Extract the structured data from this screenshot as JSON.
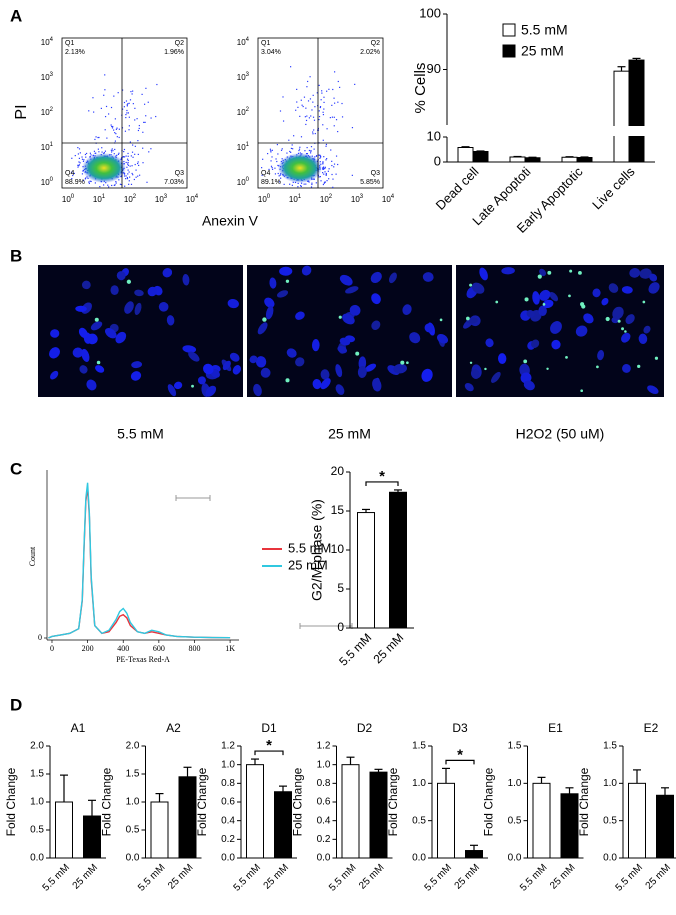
{
  "panel_labels": [
    "A",
    "B",
    "C",
    "D"
  ],
  "flow": {
    "ylabel": "PI",
    "xlabel": "Anexin V",
    "tick_base": "10",
    "tick_exponents": [
      0,
      1,
      2,
      3,
      4
    ],
    "plots": [
      {
        "quadrants": [
          [
            "Q1",
            "2.13%"
          ],
          [
            "Q2",
            "1.96%"
          ],
          [
            "Q3",
            "7.03%"
          ],
          [
            "Q4",
            "88.9%"
          ]
        ]
      },
      {
        "quadrants": [
          [
            "Q1",
            "3.04%"
          ],
          [
            "Q2",
            "2.02%"
          ],
          [
            "Q3",
            "5.85%"
          ],
          [
            "Q4",
            "89.1%"
          ]
        ]
      }
    ]
  },
  "images": {
    "captions": [
      "5.5 mM",
      "25 mM",
      "H2O2 (50 uM)"
    ]
  },
  "chart_data": [
    {
      "type": "bar",
      "ylabel": "% Cells",
      "categories": [
        "Dead cell",
        "Late Apoptoti",
        "Early Apoptotic",
        "Live cells"
      ],
      "series": [
        {
          "name": "5.5 mM",
          "color": "#ffffff",
          "values": [
            5.8,
            2.0,
            1.9,
            89.7
          ],
          "errors": [
            0.3,
            0.2,
            0.2,
            0.8
          ]
        },
        {
          "name": "25 mM",
          "color": "#000000",
          "values": [
            4.2,
            1.7,
            1.8,
            91.7
          ],
          "errors": [
            0.2,
            0.2,
            0.2,
            0.3
          ]
        }
      ],
      "ylim": [
        0,
        100
      ],
      "yticks": [
        0,
        10,
        90,
        100
      ],
      "y_break": [
        10,
        80
      ],
      "legend": "top-left"
    },
    {
      "type": "line",
      "xlabel": "PE-Texas Red-A",
      "ylabel": "Count",
      "x": [
        -20,
        0,
        50,
        100,
        150,
        170,
        180,
        190,
        200,
        210,
        220,
        240,
        280,
        320,
        360,
        380,
        400,
        420,
        440,
        480,
        520,
        560,
        600,
        640,
        700,
        800,
        900,
        1000
      ],
      "series": [
        {
          "name": "5.5 mM",
          "color": "#e8343c",
          "values": [
            0,
            1,
            2,
            3,
            6,
            24,
            58,
            88,
            97,
            78,
            38,
            8,
            3,
            4,
            10,
            14,
            15,
            13,
            8,
            4,
            3,
            4,
            3,
            2,
            1,
            0.5,
            0.3,
            0.2
          ]
        },
        {
          "name": "25 mM",
          "color": "#30c8e0",
          "values": [
            0,
            1,
            2,
            3,
            6,
            25,
            60,
            90,
            100,
            80,
            40,
            8,
            3,
            5,
            12,
            17,
            19,
            16,
            10,
            4,
            3,
            5,
            4,
            2,
            1,
            0.5,
            0.3,
            0.2
          ]
        }
      ],
      "xlim": [
        -28,
        1050
      ],
      "xticks": [
        0,
        200,
        400,
        600,
        800,
        {
          "value": 1000,
          "label": "1K"
        }
      ],
      "ylim": [
        0,
        105
      ],
      "yticks": [
        0
      ],
      "legend": "center"
    },
    {
      "type": "bar",
      "ylabel": "G2/M phase (%)",
      "categories": [
        "5.5 mM",
        "25 mM"
      ],
      "values": [
        14.8,
        17.4
      ],
      "errors": [
        0.4,
        0.3
      ],
      "colors": [
        "#ffffff",
        "#000000"
      ],
      "ylim": [
        0,
        20
      ],
      "yticks": [
        0,
        5,
        10,
        15,
        20
      ],
      "significance": "*"
    },
    {
      "type": "bar",
      "title": "A1",
      "ylabel": "Fold Change",
      "categories": [
        "5.5 mM",
        "25 mM"
      ],
      "values": [
        1.0,
        0.75
      ],
      "errors": [
        0.48,
        0.28
      ],
      "colors": [
        "#ffffff",
        "#000000"
      ],
      "ylim": [
        0,
        2.0
      ],
      "yticks": [
        {
          "value": 0,
          "label": "0.0"
        },
        0.5,
        {
          "value": 1,
          "label": "1.0"
        },
        1.5,
        {
          "value": 2,
          "label": "2.0"
        }
      ]
    },
    {
      "type": "bar",
      "title": "A2",
      "ylabel": "Fold Change",
      "categories": [
        "5.5 mM",
        "25 mM"
      ],
      "values": [
        1.0,
        1.45
      ],
      "errors": [
        0.15,
        0.17
      ],
      "colors": [
        "#ffffff",
        "#000000"
      ],
      "ylim": [
        0,
        2.0
      ],
      "yticks": [
        {
          "value": 0,
          "label": "0.0"
        },
        0.5,
        {
          "value": 1,
          "label": "1.0"
        },
        1.5,
        {
          "value": 2,
          "label": "2.0"
        }
      ]
    },
    {
      "type": "bar",
      "title": "D1",
      "ylabel": "Fold Change",
      "categories": [
        "5.5 mM",
        "25 mM"
      ],
      "values": [
        1.0,
        0.71
      ],
      "errors": [
        0.06,
        0.06
      ],
      "colors": [
        "#ffffff",
        "#000000"
      ],
      "ylim": [
        0,
        1.2
      ],
      "yticks": [
        {
          "value": 0,
          "label": "0.0"
        },
        0.2,
        0.4,
        0.6,
        0.8,
        {
          "value": 1,
          "label": "1.0"
        },
        1.2
      ],
      "significance": "*"
    },
    {
      "type": "bar",
      "title": "D2",
      "ylabel": "Fold Change",
      "categories": [
        "5.5 mM",
        "25 mM"
      ],
      "values": [
        1.0,
        0.92
      ],
      "errors": [
        0.08,
        0.03
      ],
      "colors": [
        "#ffffff",
        "#000000"
      ],
      "ylim": [
        0,
        1.2
      ],
      "yticks": [
        {
          "value": 0,
          "label": "0.0"
        },
        0.2,
        0.4,
        0.6,
        0.8,
        {
          "value": 1,
          "label": "1.0"
        },
        1.2
      ]
    },
    {
      "type": "bar",
      "title": "D3",
      "ylabel": "Fold Change",
      "categories": [
        "5.5 mM",
        "25 mM"
      ],
      "values": [
        1.0,
        0.1
      ],
      "errors": [
        0.2,
        0.07
      ],
      "colors": [
        "#ffffff",
        "#000000"
      ],
      "ylim": [
        0,
        1.5
      ],
      "yticks": [
        {
          "value": 0,
          "label": "0.0"
        },
        0.5,
        {
          "value": 1,
          "label": "1.0"
        },
        1.5
      ],
      "significance": "*"
    },
    {
      "type": "bar",
      "title": "E1",
      "ylabel": "Fold Change",
      "categories": [
        "5.5 mM",
        "25 mM"
      ],
      "values": [
        1.0,
        0.86
      ],
      "errors": [
        0.08,
        0.08
      ],
      "colors": [
        "#ffffff",
        "#000000"
      ],
      "ylim": [
        0,
        1.5
      ],
      "yticks": [
        {
          "value": 0,
          "label": "0.0"
        },
        0.5,
        {
          "value": 1,
          "label": "1.0"
        },
        1.5
      ]
    },
    {
      "type": "bar",
      "title": "E2",
      "ylabel": "Fold Change",
      "categories": [
        "5.5 mM",
        "25 mM"
      ],
      "values": [
        1.0,
        0.84
      ],
      "errors": [
        0.18,
        0.1
      ],
      "colors": [
        "#ffffff",
        "#000000"
      ],
      "ylim": [
        0,
        1.5
      ],
      "yticks": [
        {
          "value": 0,
          "label": "0.0"
        },
        0.5,
        {
          "value": 1,
          "label": "1.0"
        },
        1.5
      ]
    }
  ]
}
